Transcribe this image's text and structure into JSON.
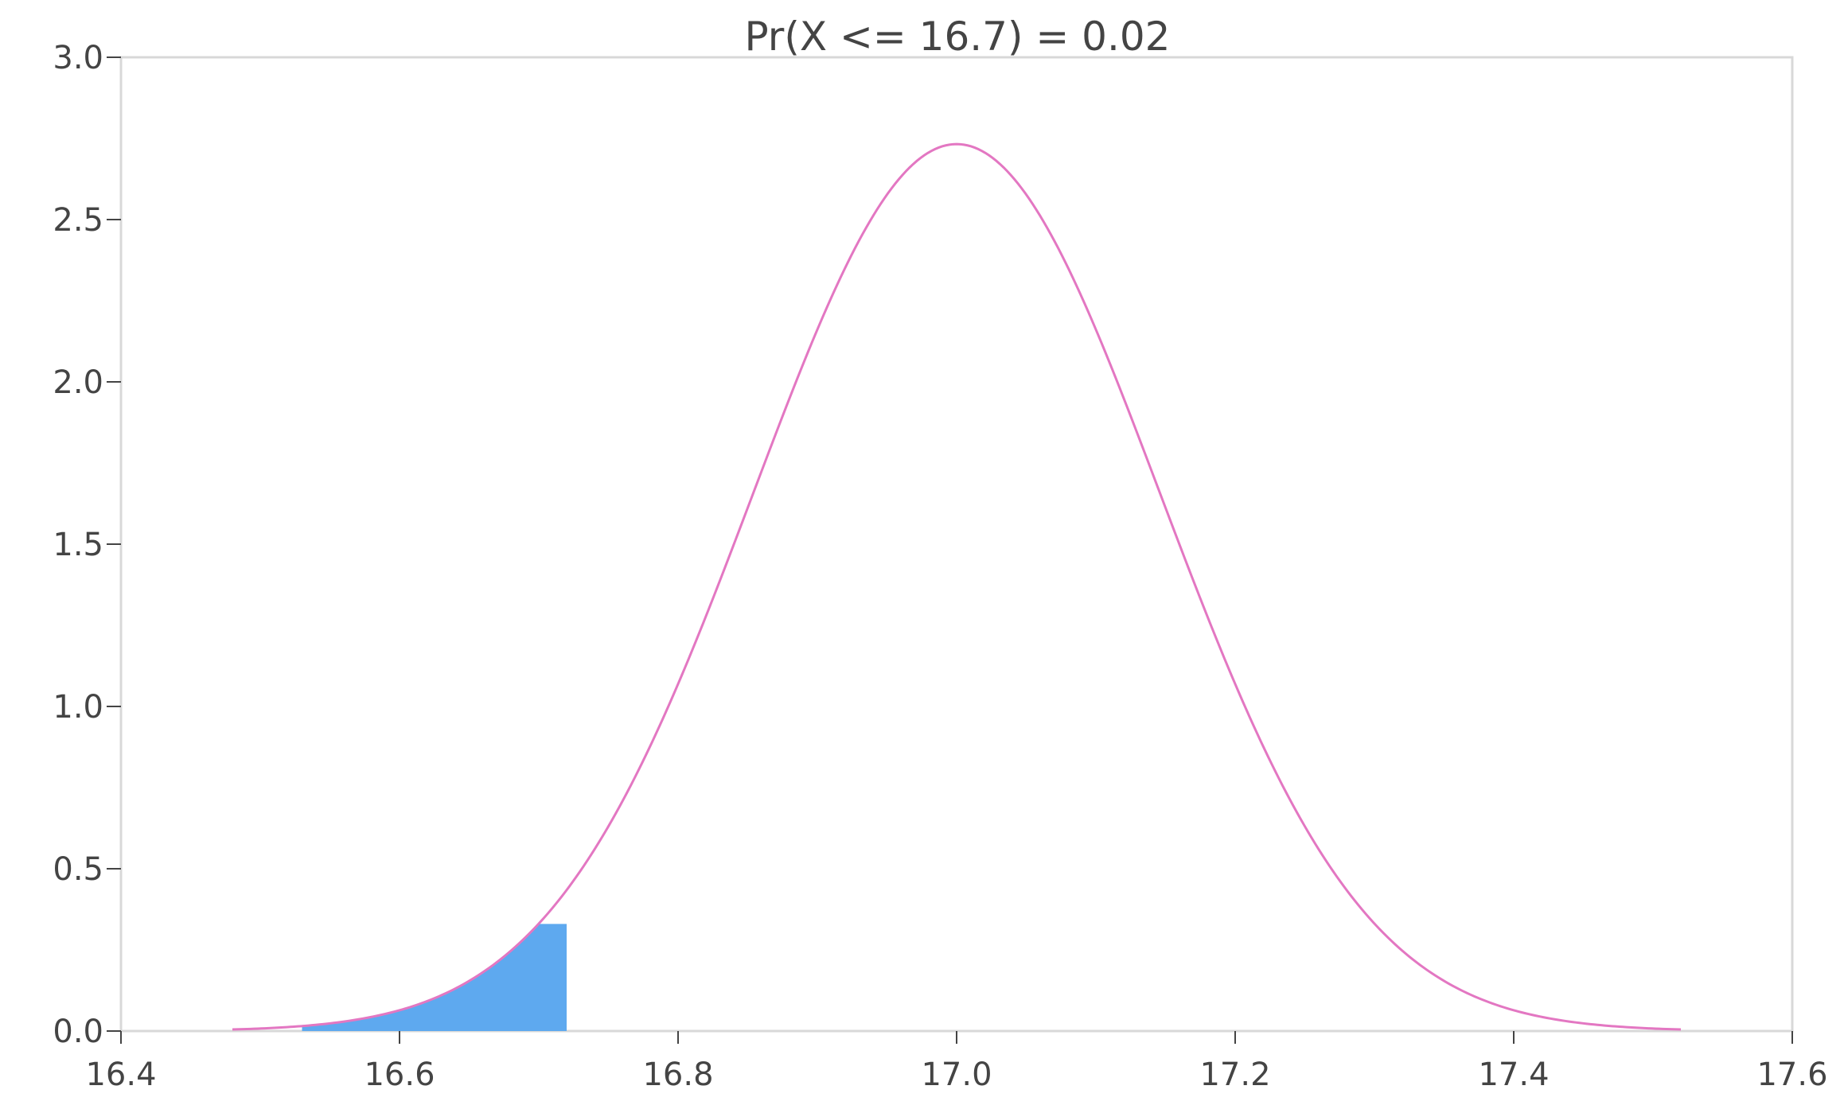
{
  "chart_data": {
    "type": "area",
    "title": "Pr(X <= 16.7) = 0.02",
    "xlabel": "",
    "ylabel": "",
    "xlim": [
      16.4,
      17.6
    ],
    "ylim": [
      0.0,
      3.0
    ],
    "x_ticks": [
      "16.4",
      "16.6",
      "16.8",
      "17.0",
      "17.2",
      "17.4",
      "17.6"
    ],
    "y_ticks": [
      "0.0",
      "0.5",
      "1.0",
      "1.5",
      "2.0",
      "2.5",
      "3.0"
    ],
    "grid": false,
    "distribution": {
      "name": "normal",
      "mean": 17.0,
      "sd": 0.146,
      "x_range": [
        16.48,
        17.52
      ]
    },
    "shaded_region": {
      "from": 16.53,
      "to": 16.72,
      "cap_height": 0.33
    },
    "colors": {
      "curve": "#e377c2",
      "fill": "#5ea9ef",
      "frame": "#d8d8d8",
      "text": "#444444"
    }
  }
}
